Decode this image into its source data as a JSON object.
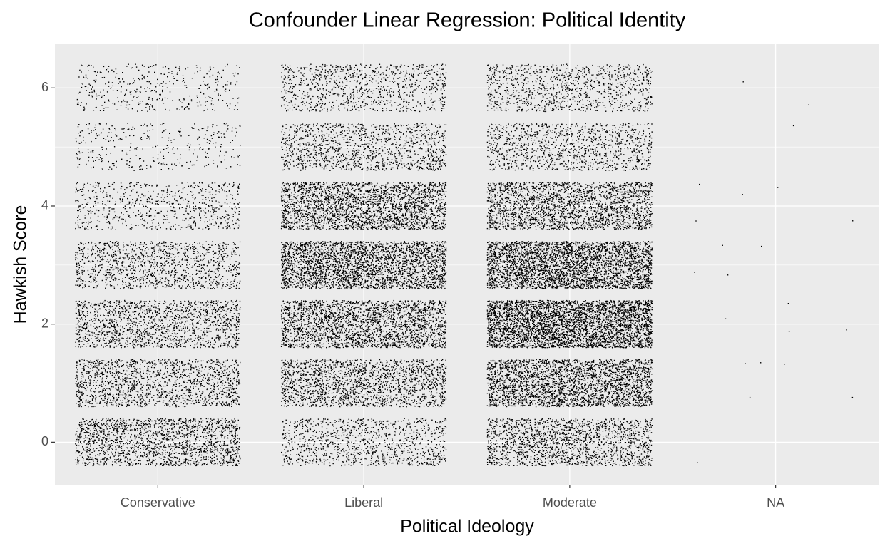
{
  "chart_data": {
    "type": "jitter",
    "title": "Confounder Linear Regression: Political Identity",
    "x_label": "Political Ideology",
    "y_label": "Hawkish Score",
    "categories": [
      "Conservative",
      "Liberal",
      "Moderate",
      "NA"
    ],
    "y_levels": [
      0,
      1,
      2,
      3,
      4,
      5,
      6
    ],
    "counts": [
      [
        1800,
        1500,
        1500,
        1200,
        700,
        350,
        400
      ],
      [
        1000,
        1800,
        2400,
        3000,
        2500,
        1200,
        900
      ],
      [
        1700,
        2800,
        4000,
        3500,
        2200,
        1100,
        1000
      ],
      [
        1,
        5,
        4,
        4,
        5,
        1,
        2
      ]
    ],
    "color": "#000000",
    "ylim": [
      -0.72,
      6.74
    ],
    "yticks": [
      0,
      2,
      4,
      6
    ],
    "minor_yticks": [
      1,
      3,
      5
    ],
    "grid": true
  }
}
